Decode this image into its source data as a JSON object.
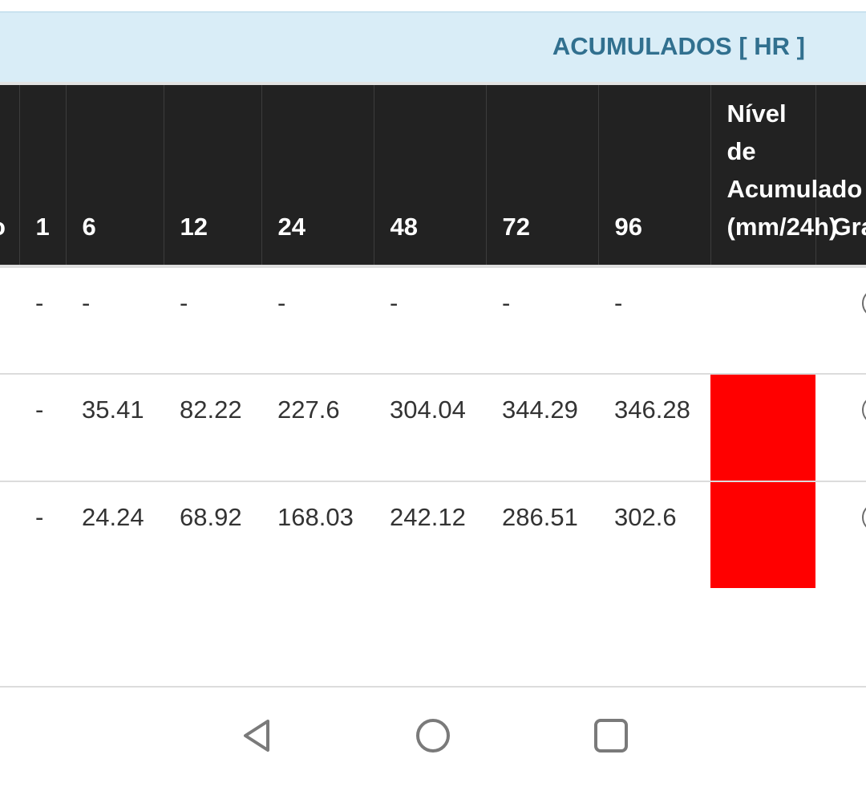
{
  "section": {
    "title": "ACUMULADOS [ HR ]",
    "banner_color": "#d9edf7",
    "title_color": "#31708f"
  },
  "table": {
    "headers": {
      "partial_prev": "o",
      "h1": "1",
      "h6": "6",
      "h12": "12",
      "h24": "24",
      "h48": "48",
      "h72": "72",
      "h96": "96",
      "nivel": "Nível de Acumulado (mm/24h)",
      "grafico_partial": "Gra"
    },
    "rows": [
      {
        "h1": "-",
        "h6": "-",
        "h12": "-",
        "h24": "-",
        "h48": "-",
        "h72": "-",
        "h96": "-",
        "level_color": ""
      },
      {
        "h1": "-",
        "h6": "35.41",
        "h12": "82.22",
        "h24": "227.6",
        "h48": "304.04",
        "h72": "344.29",
        "h96": "346.28",
        "level_color": "#ff0000"
      },
      {
        "h1": "-",
        "h6": "24.24",
        "h12": "68.92",
        "h24": "168.03",
        "h48": "242.12",
        "h72": "286.51",
        "h96": "302.6",
        "level_color": "#ff0000"
      }
    ]
  },
  "navbar": {
    "back_icon": "triangle-back-icon",
    "home_icon": "circle-home-icon",
    "recents_icon": "square-recents-icon"
  }
}
